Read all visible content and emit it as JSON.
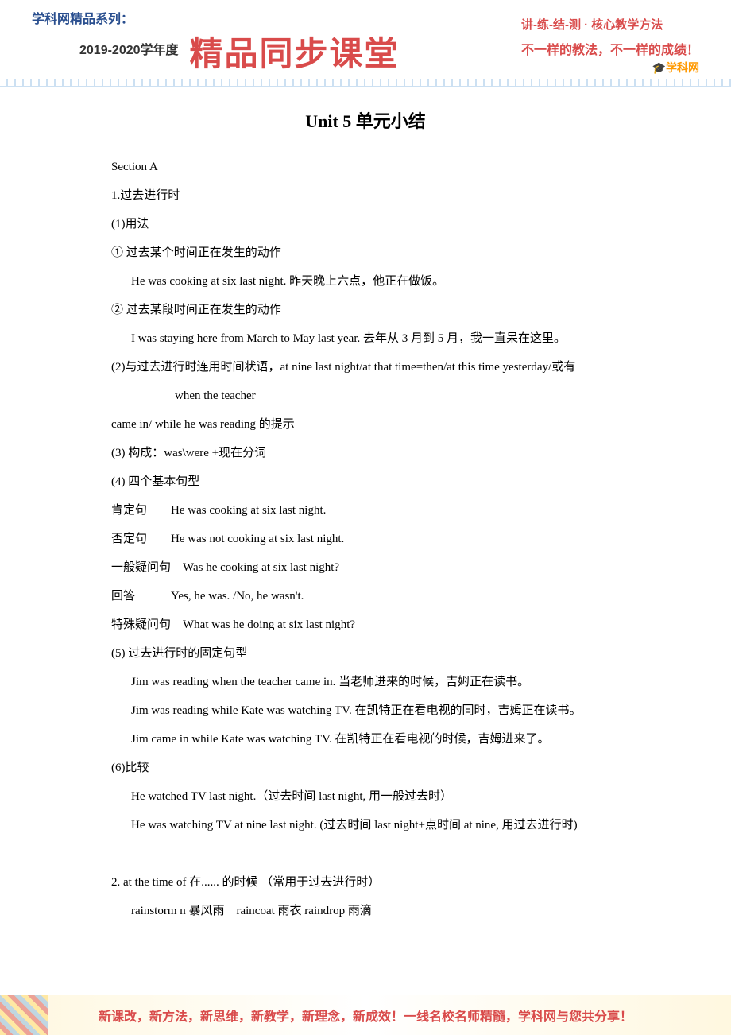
{
  "header": {
    "series_label": "学科网精品系列：",
    "year_label": "2019-2020学年度",
    "main_title": "精品同步课堂",
    "right_line1": "讲-练-结-测 · 核心教学方法",
    "right_line2": "不一样的教法，不一样的成绩！",
    "brand": "🎓学科网"
  },
  "document": {
    "title": "Unit 5 单元小结",
    "lines": [
      {
        "text": "Section A",
        "indent": 0
      },
      {
        "text": "1.过去进行时",
        "indent": 0
      },
      {
        "text": "(1)用法",
        "indent": 0
      },
      {
        "text": "① 过去某个时间正在发生的动作",
        "indent": 0
      },
      {
        "text": "He was cooking at six last night. 昨天晚上六点，他正在做饭。",
        "indent": 1
      },
      {
        "text": "② 过去某段时间正在发生的动作",
        "indent": 0
      },
      {
        "text": "I was staying here from March to May last year. 去年从 3 月到 5 月，我一直呆在这里。",
        "indent": 1
      },
      {
        "text": "(2)与过去进行时连用时间状语，at nine last night/at that time=then/at this time yesterday/或有",
        "indent": 0
      },
      {
        "text": "when the teacher",
        "indent": 2
      },
      {
        "text": "came in/ while he was reading 的提示",
        "indent": 0
      },
      {
        "text": "(3) 构成：was\\were +现在分词",
        "indent": 0
      },
      {
        "text": "(4) 四个基本句型",
        "indent": 0
      },
      {
        "text": "肯定句  He was cooking at six last night.",
        "indent": 0
      },
      {
        "text": "否定句  He was not cooking at six last night.",
        "indent": 0
      },
      {
        "text": "一般疑问句 Was he cooking at six last night?",
        "indent": 0
      },
      {
        "text": "回答   Yes, he was. /No, he wasn't.",
        "indent": 0
      },
      {
        "text": "特殊疑问句 What was he doing at six last night?",
        "indent": 0
      },
      {
        "text": "(5) 过去进行时的固定句型",
        "indent": 0
      },
      {
        "text": "Jim was reading when the teacher came in. 当老师进来的时候，吉姆正在读书。",
        "indent": 1
      },
      {
        "text": "Jim was reading while Kate was watching TV. 在凯特正在看电视的同时，吉姆正在读书。",
        "indent": 1
      },
      {
        "text": "Jim came in while Kate was watching TV. 在凯特正在看电视的时候，吉姆进来了。",
        "indent": 1
      },
      {
        "text": "(6)比较",
        "indent": 0
      },
      {
        "text": "He watched TV last night.（过去时间 last night, 用一般过去时）",
        "indent": 1
      },
      {
        "text": "He was watching TV at nine last night. (过去时间 last night+点时间 at nine, 用过去进行时)",
        "indent": 1
      },
      {
        "text": " ",
        "indent": 0
      },
      {
        "text": "2. at the time of  在...... 的时候 （常用于过去进行时）",
        "indent": 0
      },
      {
        "text": "rainstorm n  暴风雨 raincoat  雨衣  raindrop 雨滴",
        "indent": 1
      }
    ]
  },
  "footer": {
    "text": "新课改，新方法，新思维，新教学，新理念，新成效！一线名校名师精髓，学科网与您共分享！"
  },
  "colors": {
    "accent_red": "#d94b4b",
    "accent_blue": "#2a4f8f",
    "light_blue": "#82b4e0",
    "orange": "#ff9900",
    "text": "#000000",
    "background": "#ffffff"
  }
}
